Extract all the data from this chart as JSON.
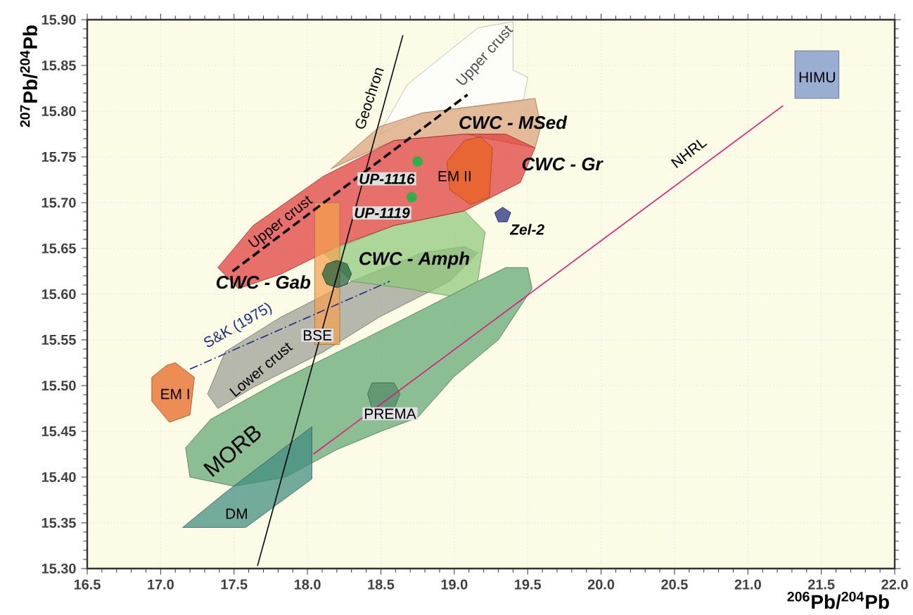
{
  "chart_data": {
    "type": "scatter",
    "xlabel": "$^{206}$Pb/$^{204}$Pb",
    "ylabel": "$^{207}$Pb/$^{204}$Pb",
    "xlim": [
      16.5,
      22.0
    ],
    "ylim": [
      15.3,
      15.9
    ],
    "xticks": [
      16.5,
      {
        "value": 17,
        "label": "17.0"
      },
      17.5,
      {
        "value": 18,
        "label": "18.0"
      },
      18.5,
      {
        "value": 19,
        "label": "19.0"
      },
      19.5,
      {
        "value": 20,
        "label": "20.0"
      },
      20.5,
      {
        "value": 21,
        "label": "21.0"
      },
      21.5,
      {
        "value": 22,
        "label": "22.0"
      }
    ],
    "yticks": [
      {
        "value": 15.3,
        "label": "15.30"
      },
      15.35,
      {
        "value": 15.4,
        "label": "15.40"
      },
      15.45,
      {
        "value": 15.5,
        "label": "15.50"
      },
      15.55,
      {
        "value": 15.6,
        "label": "15.60"
      },
      15.65,
      {
        "value": 15.7,
        "label": "15.70"
      },
      15.75,
      {
        "value": 15.8,
        "label": "15.80"
      },
      15.85,
      {
        "value": 15.9,
        "label": "15.90"
      }
    ],
    "grid": true,
    "series": [
      {
        "type": "area",
        "color": "#ffffff",
        "x": [
          18.49,
          18.68,
          19.16,
          19.4,
          19.4,
          19.5,
          19.47,
          18.78
        ],
        "values": [
          15.775,
          15.829,
          15.891,
          15.898,
          15.845,
          15.837,
          15.811,
          15.798
        ]
      },
      {
        "type": "area",
        "color": "#9a9e94",
        "x": [
          17.32,
          17.44,
          17.82,
          18.3,
          18.78,
          19.07,
          19.16,
          18.97,
          18.49,
          18.11,
          17.63,
          17.39
        ],
        "values": [
          15.491,
          15.537,
          15.575,
          15.614,
          15.645,
          15.652,
          15.645,
          15.614,
          15.575,
          15.537,
          15.498,
          15.475
        ]
      },
      {
        "type": "area",
        "color": "#5fa673",
        "x": [
          17.17,
          17.34,
          17.82,
          18.4,
          18.88,
          19.16,
          19.35,
          19.5,
          19.53,
          19.3,
          19.0,
          18.75,
          18.5,
          18.2,
          17.85,
          17.5,
          17.2
        ],
        "values": [
          15.432,
          15.463,
          15.506,
          15.552,
          15.591,
          15.614,
          15.629,
          15.629,
          15.606,
          15.55,
          15.51,
          15.465,
          15.45,
          15.43,
          15.4,
          15.39,
          15.4
        ]
      },
      {
        "type": "area",
        "color": "#3d8a80",
        "x": [
          17.15,
          17.44,
          18.03,
          18.03,
          17.58
        ],
        "values": [
          15.345,
          15.383,
          15.455,
          15.398,
          15.345
        ]
      },
      {
        "type": "area",
        "color": "#8fc97a",
        "x": [
          18.11,
          18.59,
          19.07,
          19.21,
          19.16,
          18.97,
          18.68,
          18.3
        ],
        "values": [
          15.645,
          15.675,
          15.691,
          15.668,
          15.614,
          15.598,
          15.606,
          15.614
        ]
      },
      {
        "type": "area",
        "color": "#d9a27a",
        "x": [
          18.16,
          18.49,
          18.78,
          19.55,
          19.59,
          19.55,
          19.07,
          18.59,
          18.2
        ],
        "values": [
          15.737,
          15.783,
          15.798,
          15.814,
          15.783,
          15.76,
          15.775,
          15.768,
          15.74
        ]
      },
      {
        "type": "area",
        "color": "#e03a3a",
        "x": [
          17.39,
          17.63,
          18.11,
          18.59,
          19.07,
          19.35,
          19.55,
          19.45,
          19.07,
          18.59,
          18.2,
          17.82,
          17.53
        ],
        "values": [
          15.629,
          15.675,
          15.729,
          15.768,
          15.775,
          15.775,
          15.76,
          15.722,
          15.691,
          15.675,
          15.652,
          15.622,
          15.606
        ]
      },
      {
        "type": "area",
        "color": "#e8621e",
        "x": [
          18.95,
          19.07,
          19.18,
          19.26,
          19.24,
          19.11,
          18.97
        ],
        "values": [
          15.745,
          15.768,
          15.772,
          15.76,
          15.706,
          15.698,
          15.714
        ]
      },
      {
        "type": "area",
        "color": "#e8621e",
        "x": [
          16.94,
          17.04,
          17.1,
          17.23,
          17.2,
          17.06,
          16.94
        ],
        "values": [
          15.509,
          15.522,
          15.525,
          15.509,
          15.468,
          15.46,
          15.483
        ]
      },
      {
        "type": "area",
        "color": "#f5a14f",
        "x": [
          18.05,
          18.22,
          18.22,
          18.05
        ],
        "values": [
          15.545,
          15.545,
          15.7,
          15.7
        ]
      },
      {
        "type": "area",
        "color": "#1f5e3a",
        "x": [
          18.3,
          18.27,
          18.2,
          18.13,
          18.1,
          18.13,
          18.2,
          18.27
        ],
        "values": [
          15.622,
          15.633,
          15.637,
          15.633,
          15.622,
          15.611,
          15.607,
          15.611
        ]
      },
      {
        "type": "area",
        "color": "#4f8a66",
        "x": [
          18.44,
          18.59,
          18.63,
          18.59,
          18.44,
          18.41
        ],
        "values": [
          15.503,
          15.503,
          15.491,
          15.475,
          15.475,
          15.491
        ]
      },
      {
        "type": "area",
        "color": "#7390c8",
        "x": [
          21.32,
          21.62,
          21.62,
          21.32
        ],
        "values": [
          15.814,
          15.814,
          15.866,
          15.866
        ]
      },
      {
        "type": "line",
        "color": "#000000",
        "line_style": "solid",
        "x": [
          17.66,
          18.65
        ],
        "values": [
          15.303,
          15.883
        ]
      },
      {
        "type": "line",
        "color": "#e0187a",
        "line_style": "solid",
        "x": [
          18.04,
          21.24
        ],
        "values": [
          15.425,
          15.806
        ]
      },
      {
        "type": "line",
        "color": "#000000",
        "line_style": "dashed",
        "x": [
          17.49,
          19.09
        ],
        "values": [
          15.625,
          15.818
        ]
      },
      {
        "type": "line",
        "color": "#1c2a80",
        "line_style": "dashdot",
        "x": [
          17.2,
          18.56
        ],
        "values": [
          15.518,
          15.614
        ]
      },
      {
        "type": "area",
        "color": "#1c2a80",
        "x": [
          19.33,
          19.385,
          19.36,
          19.3,
          19.275
        ],
        "values": [
          15.695,
          15.689,
          15.679,
          15.679,
          15.689
        ]
      },
      {
        "color": "#2bb04a",
        "x": [
          18.75,
          18.71
        ],
        "values": [
          15.745,
          15.706
        ]
      }
    ],
    "annotations": [
      "Upper crust",
      "Upper crust",
      "Geochron",
      "NHRL",
      "CWC - MSed",
      "EM II",
      "CWC - Gr",
      "UP-1116",
      "UP-1119",
      "Zel-2",
      "CWC - Amph",
      "CWC - Gab",
      "S&K (1975)",
      "BSE",
      "Lower crust",
      "EM I",
      "PREMA",
      "MORB",
      "DM",
      "HIMU"
    ]
  }
}
